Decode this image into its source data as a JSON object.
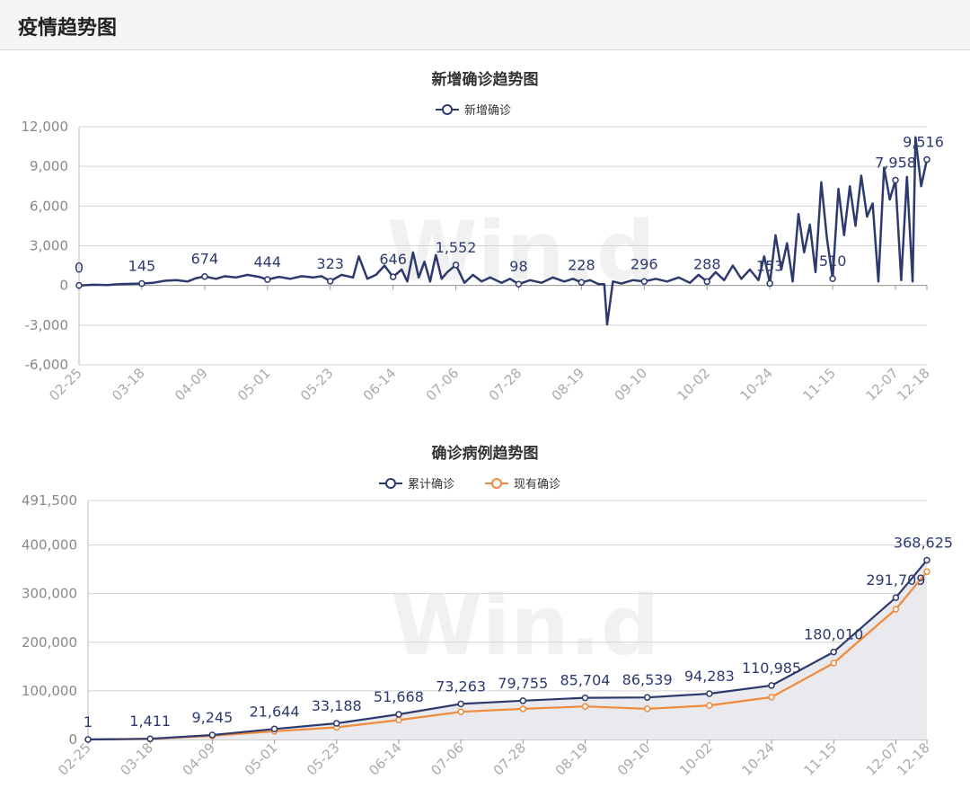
{
  "page": {
    "title": "疫情趋势图"
  },
  "watermark": "Win.d",
  "colors": {
    "navy": "#2d3a6e",
    "orange": "#f08a3c",
    "area": "#e9e9ee",
    "grid": "#d4d4d4"
  },
  "chart_data": [
    {
      "type": "line",
      "title": "新增确诊趋势图",
      "legend": [
        "新增确诊"
      ],
      "legend_position": "top-center",
      "grid": true,
      "ylim": [
        -6000,
        12000
      ],
      "yticks": [
        "12,000",
        "9,000",
        "6,000",
        "3,000",
        "0",
        "-3,000",
        "-6,000"
      ],
      "xticks": [
        "02-25",
        "03-18",
        "04-09",
        "05-01",
        "05-23",
        "06-14",
        "07-06",
        "07-28",
        "08-19",
        "09-10",
        "10-02",
        "10-24",
        "11-15",
        "12-07",
        "12-18"
      ],
      "x_range": [
        "02-25",
        "12-18"
      ],
      "series": [
        {
          "name": "新增确诊",
          "color": "#2d3a6e",
          "points": [
            [
              "02-25",
              0
            ],
            [
              "03-01",
              50
            ],
            [
              "03-06",
              30
            ],
            [
              "03-10",
              100
            ],
            [
              "03-14",
              120
            ],
            [
              "03-18",
              145
            ],
            [
              "03-22",
              200
            ],
            [
              "03-26",
              350
            ],
            [
              "03-30",
              400
            ],
            [
              "04-03",
              300
            ],
            [
              "04-06",
              550
            ],
            [
              "04-09",
              674
            ],
            [
              "04-13",
              500
            ],
            [
              "04-16",
              700
            ],
            [
              "04-20",
              600
            ],
            [
              "04-24",
              800
            ],
            [
              "04-28",
              650
            ],
            [
              "05-01",
              444
            ],
            [
              "05-05",
              650
            ],
            [
              "05-09",
              500
            ],
            [
              "05-13",
              700
            ],
            [
              "05-17",
              600
            ],
            [
              "05-20",
              700
            ],
            [
              "05-23",
              323
            ],
            [
              "05-27",
              800
            ],
            [
              "05-31",
              600
            ],
            [
              "06-02",
              2200
            ],
            [
              "06-05",
              500
            ],
            [
              "06-08",
              800
            ],
            [
              "06-11",
              1500
            ],
            [
              "06-14",
              646
            ],
            [
              "06-17",
              1200
            ],
            [
              "06-19",
              300
            ],
            [
              "06-21",
              2500
            ],
            [
              "06-23",
              600
            ],
            [
              "06-25",
              1800
            ],
            [
              "06-27",
              300
            ],
            [
              "06-29",
              2300
            ],
            [
              "07-01",
              500
            ],
            [
              "07-03",
              1000
            ],
            [
              "07-06",
              1552
            ],
            [
              "07-09",
              200
            ],
            [
              "07-12",
              800
            ],
            [
              "07-15",
              300
            ],
            [
              "07-18",
              600
            ],
            [
              "07-22",
              200
            ],
            [
              "07-25",
              500
            ],
            [
              "07-28",
              98
            ],
            [
              "08-01",
              400
            ],
            [
              "08-05",
              200
            ],
            [
              "08-09",
              600
            ],
            [
              "08-13",
              300
            ],
            [
              "08-16",
              500
            ],
            [
              "08-19",
              228
            ],
            [
              "08-22",
              400
            ],
            [
              "08-25",
              100
            ],
            [
              "08-27",
              100
            ],
            [
              "08-28",
              -2950
            ],
            [
              "08-30",
              300
            ],
            [
              "09-02",
              150
            ],
            [
              "09-06",
              400
            ],
            [
              "09-10",
              296
            ],
            [
              "09-14",
              500
            ],
            [
              "09-18",
              300
            ],
            [
              "09-22",
              600
            ],
            [
              "09-26",
              200
            ],
            [
              "09-29",
              800
            ],
            [
              "10-02",
              288
            ],
            [
              "10-05",
              1000
            ],
            [
              "10-08",
              400
            ],
            [
              "10-11",
              1500
            ],
            [
              "10-14",
              500
            ],
            [
              "10-17",
              1200
            ],
            [
              "10-20",
              400
            ],
            [
              "10-22",
              2200
            ],
            [
              "10-24",
              153
            ],
            [
              "10-26",
              3800
            ],
            [
              "10-28",
              1200
            ],
            [
              "10-30",
              3200
            ],
            [
              "11-01",
              300
            ],
            [
              "11-03",
              5400
            ],
            [
              "11-05",
              2500
            ],
            [
              "11-07",
              4600
            ],
            [
              "11-09",
              1000
            ],
            [
              "11-11",
              7800
            ],
            [
              "11-13",
              3500
            ],
            [
              "11-15",
              510
            ],
            [
              "11-17",
              7300
            ],
            [
              "11-19",
              3800
            ],
            [
              "11-21",
              7500
            ],
            [
              "11-23",
              4500
            ],
            [
              "11-25",
              8300
            ],
            [
              "11-27",
              5200
            ],
            [
              "11-29",
              6200
            ],
            [
              "12-01",
              300
            ],
            [
              "12-03",
              8900
            ],
            [
              "12-05",
              6500
            ],
            [
              "12-07",
              7958
            ],
            [
              "12-09",
              400
            ],
            [
              "12-11",
              8200
            ],
            [
              "12-13",
              300
            ],
            [
              "12-14",
              11200
            ],
            [
              "12-16",
              7500
            ],
            [
              "12-18",
              9516
            ]
          ],
          "data_labels": [
            [
              "02-25",
              0,
              "0"
            ],
            [
              "03-18",
              145,
              "145"
            ],
            [
              "04-09",
              674,
              "674"
            ],
            [
              "05-01",
              444,
              "444"
            ],
            [
              "05-23",
              323,
              "323"
            ],
            [
              "06-14",
              646,
              "646"
            ],
            [
              "07-06",
              1552,
              "1,552"
            ],
            [
              "07-28",
              98,
              "98"
            ],
            [
              "08-19",
              228,
              "228"
            ],
            [
              "09-10",
              296,
              "296"
            ],
            [
              "10-02",
              288,
              "288"
            ],
            [
              "10-24",
              153,
              "153"
            ],
            [
              "11-15",
              510,
              "510"
            ],
            [
              "12-07",
              7958,
              "7,958"
            ],
            [
              "12-18",
              9516,
              "9,516"
            ]
          ]
        }
      ]
    },
    {
      "type": "area",
      "title": "确诊病例趋势图",
      "legend": [
        "累计确诊",
        "现有确诊"
      ],
      "legend_position": "top-center",
      "grid": true,
      "ylim": [
        0,
        491500
      ],
      "yticks": [
        "491,500",
        "400,000",
        "300,000",
        "200,000",
        "100,000",
        "0"
      ],
      "xticks": [
        "02-25",
        "03-18",
        "04-09",
        "05-01",
        "05-23",
        "06-14",
        "07-06",
        "07-28",
        "08-19",
        "09-10",
        "10-02",
        "10-24",
        "11-15",
        "12-07",
        "12-18"
      ],
      "x_range": [
        "02-25",
        "12-18"
      ],
      "series": [
        {
          "name": "累计确诊",
          "color": "#2d3a6e",
          "points": [
            [
              "02-25",
              1
            ],
            [
              "03-18",
              1411
            ],
            [
              "04-09",
              9245
            ],
            [
              "05-01",
              21644
            ],
            [
              "05-23",
              33188
            ],
            [
              "06-14",
              51668
            ],
            [
              "07-06",
              73263
            ],
            [
              "07-28",
              79755
            ],
            [
              "08-19",
              85704
            ],
            [
              "09-10",
              86539
            ],
            [
              "10-02",
              94283
            ],
            [
              "10-24",
              110985
            ],
            [
              "11-15",
              180010
            ],
            [
              "12-07",
              291709
            ],
            [
              "12-18",
              368625
            ]
          ],
          "data_labels": [
            [
              "02-25",
              1,
              "1"
            ],
            [
              "03-18",
              1411,
              "1,411"
            ],
            [
              "04-09",
              9245,
              "9,245"
            ],
            [
              "05-01",
              21644,
              "21,644"
            ],
            [
              "05-23",
              33188,
              "33,188"
            ],
            [
              "06-14",
              51668,
              "51,668"
            ],
            [
              "07-06",
              73263,
              "73,263"
            ],
            [
              "07-28",
              79755,
              "79,755"
            ],
            [
              "08-19",
              85704,
              "85,704"
            ],
            [
              "09-10",
              86539,
              "86,539"
            ],
            [
              "10-02",
              94283,
              "94,283"
            ],
            [
              "10-24",
              110985,
              "110,985"
            ],
            [
              "11-15",
              180010,
              "180,010"
            ],
            [
              "12-07",
              291709,
              "291,709"
            ],
            [
              "12-18",
              368625,
              "368,625"
            ]
          ]
        },
        {
          "name": "现有确诊",
          "color": "#f08a3c",
          "points": [
            [
              "02-25",
              1
            ],
            [
              "03-18",
              1200
            ],
            [
              "04-09",
              7500
            ],
            [
              "05-01",
              17000
            ],
            [
              "05-23",
              25000
            ],
            [
              "06-14",
              40000
            ],
            [
              "07-06",
              57000
            ],
            [
              "07-28",
              63000
            ],
            [
              "08-19",
              68000
            ],
            [
              "09-10",
              63000
            ],
            [
              "10-02",
              70000
            ],
            [
              "10-24",
              87000
            ],
            [
              "11-15",
              157000
            ],
            [
              "12-07",
              268000
            ],
            [
              "12-18",
              345000
            ]
          ]
        }
      ]
    }
  ]
}
